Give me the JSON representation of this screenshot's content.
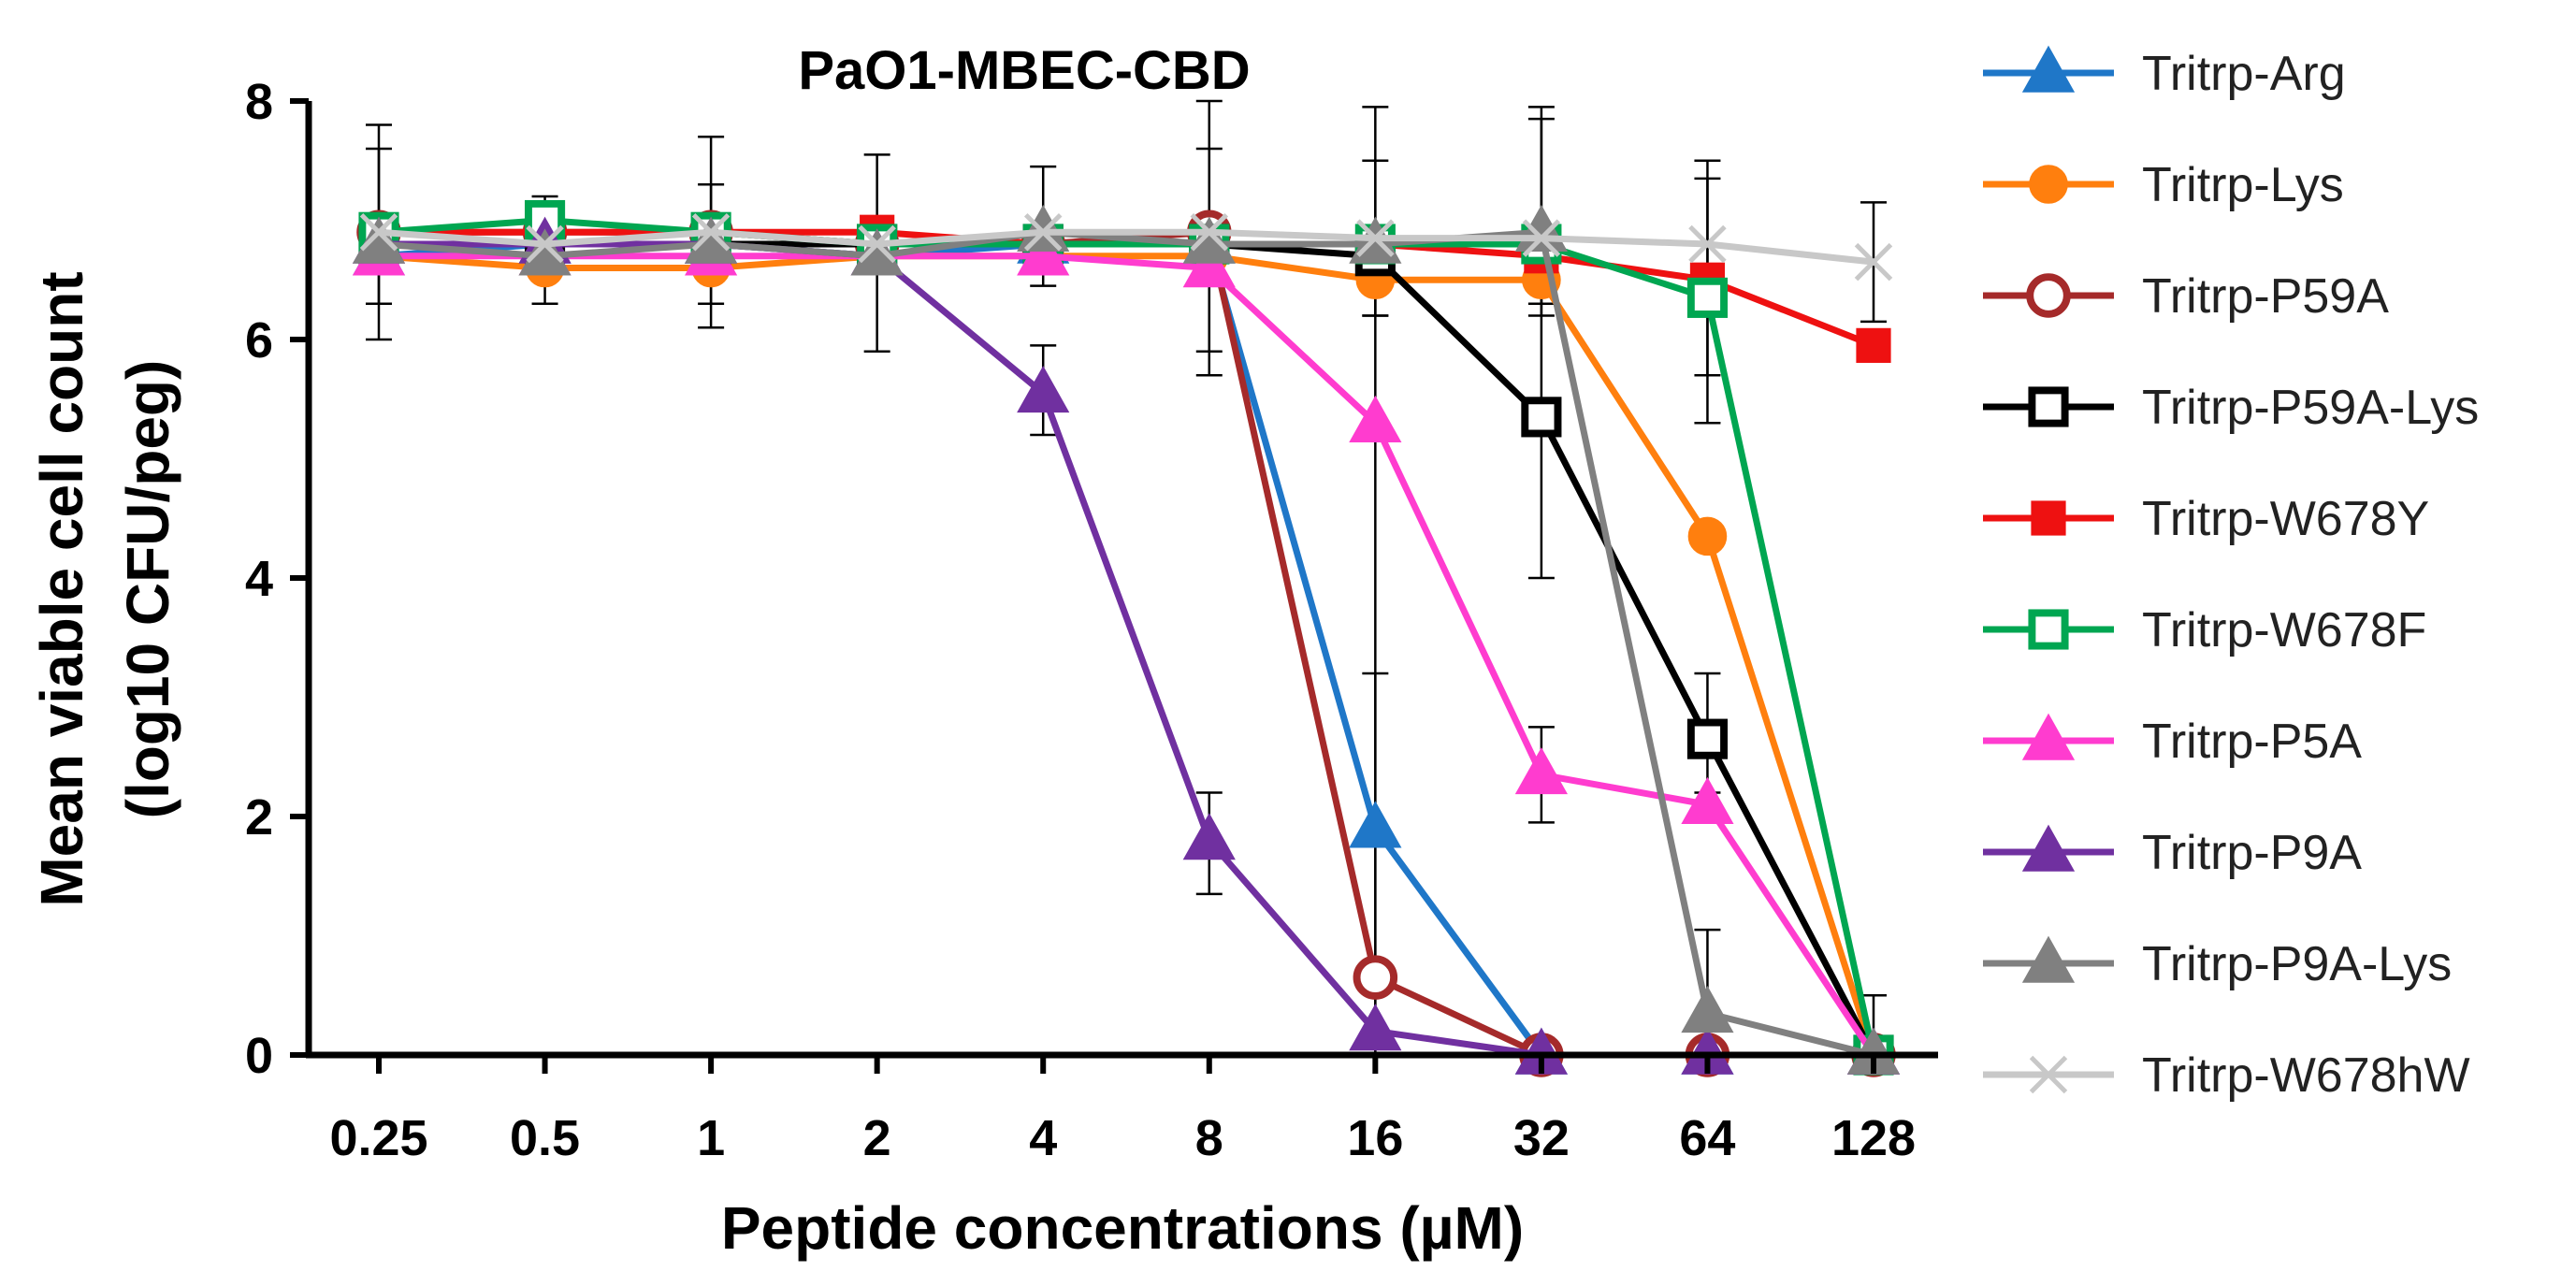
{
  "chart_data": {
    "type": "line",
    "title": "PaO1-MBEC-CBD",
    "xlabel": "Peptide concentrations (µM)",
    "ylabel_line1": "Mean viable cell count",
    "ylabel_line2": "(log10 CFU/peg)",
    "categories": [
      "0.25",
      "0.5",
      "1",
      "2",
      "4",
      "8",
      "16",
      "32",
      "64",
      "128"
    ],
    "ylim": [
      0,
      8
    ],
    "yticks": [
      "0",
      "2",
      "4",
      "6",
      "8"
    ],
    "legend_position": "right",
    "series": [
      {
        "name": "Tritrp-Arg",
        "color": "#1f77c8",
        "marker": "triangle",
        "filled": true,
        "values": [
          6.7,
          6.8,
          6.8,
          6.7,
          6.8,
          6.8,
          1.9,
          0.0,
          0.0,
          0.0
        ]
      },
      {
        "name": "Tritrp-Lys",
        "color": "#ff7f0e",
        "marker": "circle",
        "filled": true,
        "values": [
          6.7,
          6.6,
          6.6,
          6.7,
          6.7,
          6.7,
          6.5,
          6.5,
          4.35,
          0.0
        ]
      },
      {
        "name": "Tritrp-P59A",
        "color": "#a52a2a",
        "marker": "circle",
        "filled": false,
        "values": [
          6.9,
          6.9,
          6.9,
          6.8,
          6.8,
          6.9,
          0.65,
          0.0,
          0.0,
          0.0
        ]
      },
      {
        "name": "Tritrp-P59A-Lys",
        "color": "#000000",
        "marker": "square",
        "filled": false,
        "values": [
          6.8,
          6.8,
          6.8,
          6.8,
          6.8,
          6.8,
          6.7,
          5.35,
          2.65,
          0.0
        ]
      },
      {
        "name": "Tritrp-W678Y",
        "color": "#ee1111",
        "marker": "square",
        "filled": true,
        "values": [
          6.9,
          6.9,
          6.9,
          6.9,
          6.8,
          6.8,
          6.8,
          6.7,
          6.5,
          5.95
        ]
      },
      {
        "name": "Tritrp-W678F",
        "color": "#00a651",
        "marker": "square",
        "filled": false,
        "values": [
          6.9,
          7.0,
          6.9,
          6.8,
          6.8,
          6.8,
          6.8,
          6.8,
          6.35,
          0.0
        ]
      },
      {
        "name": "Tritrp-P5A",
        "color": "#ff3ccf",
        "marker": "triangle",
        "filled": true,
        "values": [
          6.7,
          6.7,
          6.7,
          6.7,
          6.7,
          6.6,
          5.3,
          2.35,
          2.1,
          0.0
        ]
      },
      {
        "name": "Tritrp-P9A",
        "color": "#7030a0",
        "marker": "triangle",
        "filled": true,
        "values": [
          6.8,
          6.8,
          6.8,
          6.7,
          5.55,
          1.8,
          0.2,
          0.0,
          0.0,
          0.0
        ]
      },
      {
        "name": "Tritrp-P9A-Lys",
        "color": "#808080",
        "marker": "triangle",
        "filled": true,
        "values": [
          6.8,
          6.7,
          6.8,
          6.7,
          6.9,
          6.8,
          6.8,
          6.9,
          0.35,
          0.0
        ]
      },
      {
        "name": "Tritrp-W678hW",
        "color": "#c8c8c8",
        "marker": "x",
        "filled": false,
        "values": [
          6.9,
          6.8,
          6.9,
          6.8,
          6.9,
          6.9,
          6.85,
          6.85,
          6.8,
          6.65
        ]
      }
    ],
    "error_bars": [
      {
        "series": "Tritrp-P59A-Lys",
        "index": 0,
        "low": 6.0,
        "high": 7.8
      },
      {
        "series": "Tritrp-Arg",
        "index": 0,
        "low": 6.3,
        "high": 7.6
      },
      {
        "series": "Tritrp-W678F",
        "index": 1,
        "low": 6.3,
        "high": 7.2
      },
      {
        "series": "Tritrp-P59A-Lys",
        "index": 2,
        "low": 6.1,
        "high": 7.7
      },
      {
        "series": "Tritrp-Lys",
        "index": 2,
        "low": 6.3,
        "high": 7.3
      },
      {
        "series": "Tritrp-P9A-Lys",
        "index": 3,
        "low": 5.9,
        "high": 7.55
      },
      {
        "series": "Tritrp-W678hW",
        "index": 4,
        "low": 6.45,
        "high": 7.45
      },
      {
        "series": "Tritrp-P9A",
        "index": 4,
        "low": 5.2,
        "high": 5.95
      },
      {
        "series": "Tritrp-P59A-Lys",
        "index": 5,
        "low": 5.7,
        "high": 8.0
      },
      {
        "series": "Tritrp-Lys",
        "index": 5,
        "low": 5.9,
        "high": 7.6
      },
      {
        "series": "Tritrp-P9A",
        "index": 5,
        "low": 1.35,
        "high": 2.2
      },
      {
        "series": "Tritrp-P9A-Lys",
        "index": 6,
        "low": 6.2,
        "high": 7.95
      },
      {
        "series": "Tritrp-W678hW",
        "index": 6,
        "low": 6.2,
        "high": 7.5
      },
      {
        "series": "Tritrp-Arg",
        "index": 6,
        "low": 0.0,
        "high": 3.2
      },
      {
        "series": "Tritrp-P5A",
        "index": 6,
        "low": 0.0,
        "high": 6.4
      },
      {
        "series": "Tritrp-P9A-Lys",
        "index": 7,
        "low": 6.2,
        "high": 7.95
      },
      {
        "series": "Tritrp-W678hW",
        "index": 7,
        "low": 6.3,
        "high": 7.85
      },
      {
        "series": "Tritrp-P59A-Lys",
        "index": 7,
        "low": 4.0,
        "high": 6.8
      },
      {
        "series": "Tritrp-P5A",
        "index": 7,
        "low": 1.95,
        "high": 2.75
      },
      {
        "series": "Tritrp-W678Y",
        "index": 8,
        "low": 5.7,
        "high": 7.5
      },
      {
        "series": "Tritrp-W678F",
        "index": 8,
        "low": 5.3,
        "high": 7.35
      },
      {
        "series": "Tritrp-P59A-Lys",
        "index": 8,
        "low": 2.2,
        "high": 3.2
      },
      {
        "series": "Tritrp-P9A-Lys",
        "index": 8,
        "low": 0.0,
        "high": 1.05
      },
      {
        "series": "Tritrp-W678hW",
        "index": 9,
        "low": 6.15,
        "high": 7.15
      },
      {
        "series": "Tritrp-P59A-Lys",
        "index": 9,
        "low": 0.0,
        "high": 0.5
      }
    ]
  }
}
